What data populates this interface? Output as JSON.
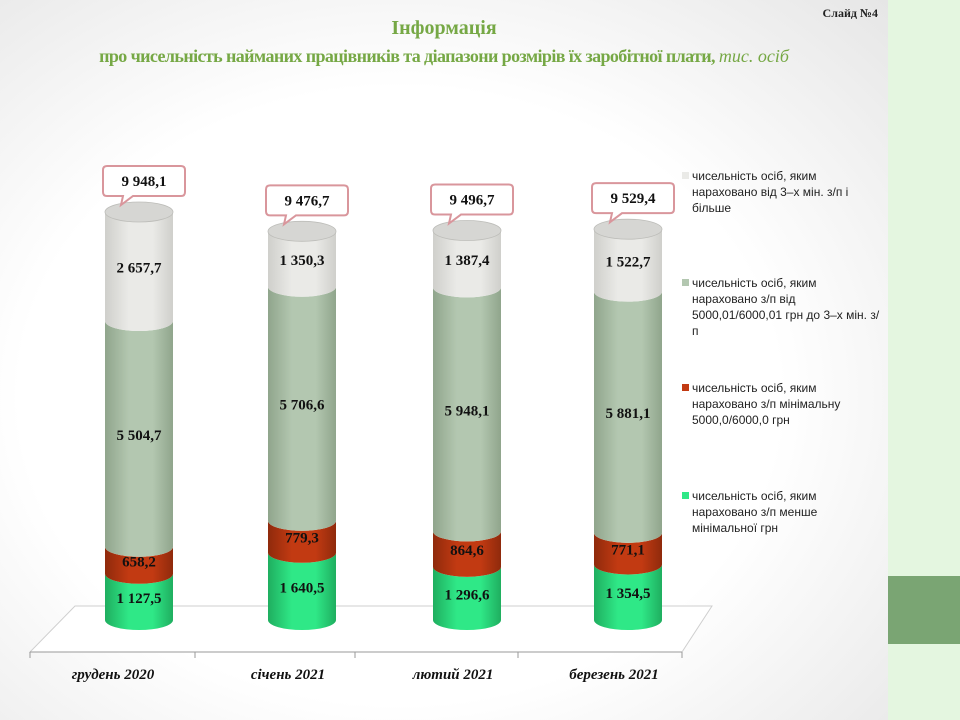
{
  "slide_label": "Слайд №4",
  "title": "Інформація",
  "subtitle": "про чисельність найманих працівників та діапазони розмірів їх заробітної плати,",
  "unit": "тис. осіб",
  "colors": {
    "below_min": "#2fe887",
    "minimal": "#c23a12",
    "min_to_3x": "#b3c7b0",
    "3x_plus": "#eaeae7",
    "callout_border": "#d9969c",
    "title": "#76a845",
    "side_panel": "#e4f6e0",
    "side_accent": "#7aa573"
  },
  "legend": [
    {
      "label": "чисельність осіб, яким нараховано від 3–х мін. з/п і більше",
      "color": "#eaeae7"
    },
    {
      "label": "чисельність осіб, яким нараховано з/п від 5000,01/6000,01 грн до 3–х мін. з/п",
      "color": "#b3c7b0"
    },
    {
      "label": "чисельність осіб, яким нараховано з/п мінімальну 5000,0/6000,0 грн",
      "color": "#c23a12"
    },
    {
      "label": "чисельність осіб, яким нараховано з/п менше мінімальної грн",
      "color": "#2fe887"
    }
  ],
  "chart_data": {
    "type": "bar",
    "stacked": true,
    "categories": [
      "грудень 2020",
      "січень 2021",
      "лютий 2021",
      "березень 2021"
    ],
    "series": [
      {
        "name": "чисельність осіб, яким нараховано з/п менше мінімальної грн",
        "values": [
          1127.5,
          1640.5,
          1296.6,
          1354.5
        ],
        "labels": [
          "1 127,5",
          "1 640,5",
          "1 296,6",
          "1 354,5"
        ]
      },
      {
        "name": "чисельність осіб, яким нараховано з/п мінімальну 5000,0/6000,0 грн",
        "values": [
          658.2,
          779.3,
          864.6,
          771.1
        ],
        "labels": [
          "658,2",
          "779,3",
          "864,6",
          "771,1"
        ]
      },
      {
        "name": "чисельність осіб, яким нараховано з/п від 5000,01/6000,01 грн до 3–х мін. з/п",
        "values": [
          5504.7,
          5706.6,
          5948.1,
          5881.1
        ],
        "labels": [
          "5 504,7",
          "5 706,6",
          "5 948,1",
          "5 881,1"
        ]
      },
      {
        "name": "чисельність осіб, яким нараховано від 3–х мін. з/п і більше",
        "values": [
          2657.7,
          1350.3,
          1387.4,
          1522.7
        ],
        "labels": [
          "2 657,7",
          "1 350,3",
          "1 387,4",
          "1 522,7"
        ]
      }
    ],
    "totals": [
      9948.1,
      9476.7,
      9496.7,
      9529.4
    ],
    "total_labels": [
      "9 948,1",
      "9 476,7",
      "9 496,7",
      "9 529,4"
    ],
    "ylim": [
      0,
      10500
    ],
    "grid": false,
    "legend_position": "right"
  }
}
